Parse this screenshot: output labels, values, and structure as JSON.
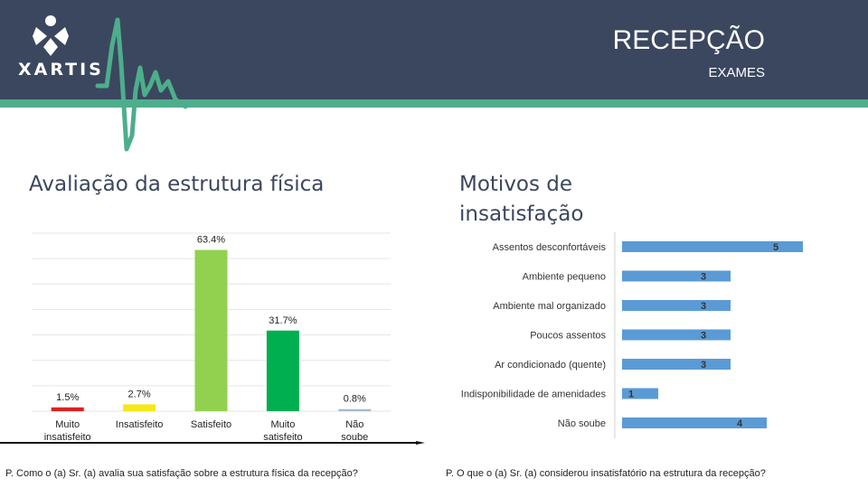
{
  "header": {
    "logo": "XARTIS",
    "title": "RECEPÇÃO",
    "subtitle": "EXAMES",
    "colors": {
      "bar": "#3b475e",
      "strip": "#4dae8c"
    }
  },
  "left_panel": {
    "title": "Avaliação da estrutura física",
    "footer": "P. Como o (a) Sr. (a) avalia sua satisfação sobre a estrutura física da recepção?"
  },
  "right_panel": {
    "title_line1": "Motivos de",
    "title_line2": "insatisfação",
    "footer": "P. O que o (a) Sr. (a) considerou insatisfatório na estrutura da recepção?"
  },
  "chart_data": [
    {
      "type": "bar",
      "categories": [
        "Muito insatisfeito",
        "Insatisfeito",
        "Satisfeito",
        "Muito satisfeito",
        "Não soube"
      ],
      "values": [
        1.5,
        2.7,
        63.4,
        31.7,
        0.8
      ],
      "value_labels": [
        "1.5%",
        "2.7%",
        "63.4%",
        "31.7%",
        "0.8%"
      ],
      "colors": [
        "#e02020",
        "#f5e71a",
        "#92d050",
        "#00b050",
        "#a6b8cc"
      ],
      "ylim": [
        0,
        70
      ],
      "grid": true
    },
    {
      "type": "bar",
      "orientation": "horizontal",
      "categories": [
        "Assentos desconfortáveis",
        "Ambiente pequeno",
        "Ambiente mal organizado",
        "Poucos assentos",
        "Ar condicionado (quente)",
        "Indisponibilidade de amenidades",
        "Não soube"
      ],
      "values": [
        5,
        3,
        3,
        3,
        3,
        1,
        4
      ],
      "value_labels": [
        "5",
        "3",
        "3",
        "3",
        "3",
        "1",
        "4"
      ],
      "color": "#5b9bd5",
      "xlim": [
        0,
        5.2
      ],
      "grid": false
    }
  ]
}
